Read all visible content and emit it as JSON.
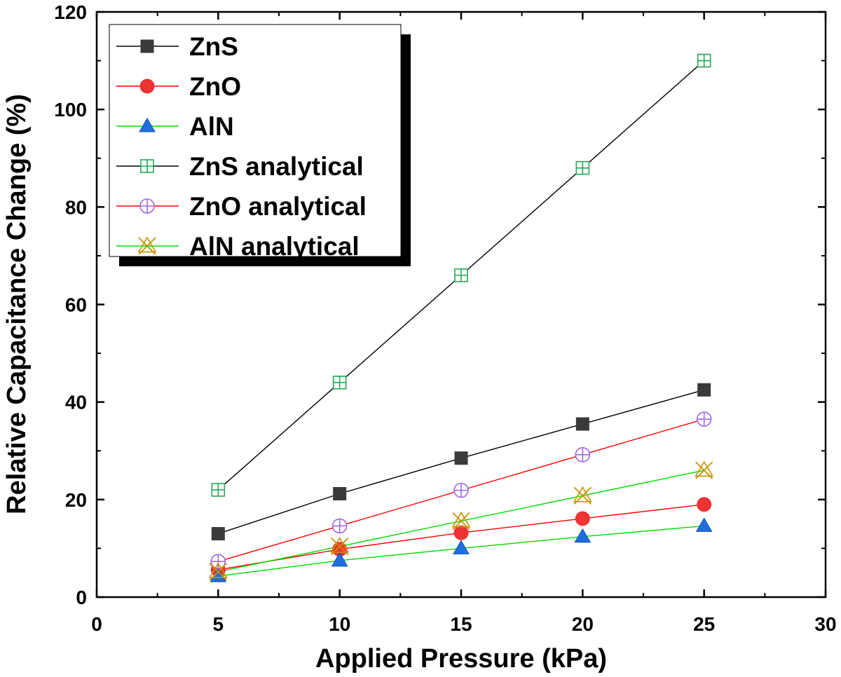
{
  "chart_data": {
    "type": "line",
    "title": "",
    "xlabel": "Applied Pressure (kPa)",
    "ylabel": "Relative Capacitance Change (%)",
    "xlim": [
      0,
      30
    ],
    "ylim": [
      0,
      120
    ],
    "x_ticks": [
      0,
      5,
      10,
      15,
      20,
      25,
      30
    ],
    "y_ticks": [
      0,
      20,
      40,
      60,
      80,
      100,
      120
    ],
    "x_tick_labels": [
      "0",
      "5",
      "10",
      "15",
      "20",
      "25",
      "30"
    ],
    "y_tick_labels": [
      "0",
      "20",
      "40",
      "60",
      "80",
      "100",
      "120"
    ],
    "grid": false,
    "legend_position": "top-left",
    "x": [
      5,
      10,
      15,
      20,
      25
    ],
    "series": [
      {
        "name": "ZnS",
        "values": [
          13,
          21.2,
          28.5,
          35.5,
          42.5
        ],
        "line_color": "#000000",
        "marker": "square-filled",
        "marker_color": "#3a3a3a"
      },
      {
        "name": "ZnO",
        "values": [
          5.6,
          9.8,
          13.2,
          16.1,
          19
        ],
        "line_color": "#ff0000",
        "marker": "circle-filled",
        "marker_color": "#ee3333"
      },
      {
        "name": "AlN",
        "values": [
          4.3,
          7.5,
          10,
          12.4,
          14.6
        ],
        "line_color": "#00dd00",
        "marker": "triangle-filled",
        "marker_color": "#1f6fe0"
      },
      {
        "name": "ZnS analytical",
        "values": [
          22,
          44,
          66,
          88,
          110
        ],
        "line_color": "#000000",
        "marker": "square-cross-open",
        "marker_color": "#22aa55"
      },
      {
        "name": "ZnO analytical",
        "values": [
          7.3,
          14.6,
          21.9,
          29.2,
          36.5
        ],
        "line_color": "#ff0000",
        "marker": "circle-cross-open",
        "marker_color": "#a066e0"
      },
      {
        "name": "AlN analytical",
        "values": [
          5.2,
          10.4,
          15.6,
          20.8,
          26
        ],
        "line_color": "#00dd00",
        "marker": "star-x-open",
        "marker_color": "#c89000"
      }
    ]
  }
}
